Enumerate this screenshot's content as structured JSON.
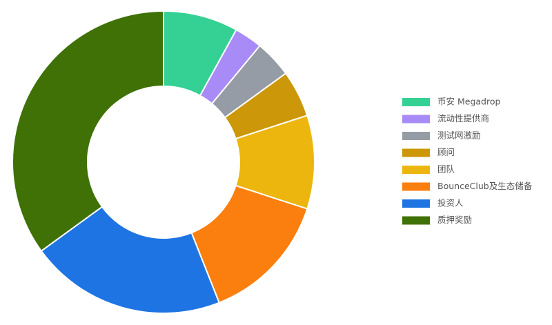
{
  "chart_data": {
    "type": "donut",
    "categories": [
      "币安 Megadrop",
      "流动性提供商",
      "测试网激励",
      "顾问",
      "团队",
      "BounceClub及生态储备",
      "投资人",
      "质押奖励"
    ],
    "values": [
      8,
      3,
      4,
      5,
      10,
      14,
      21,
      35
    ],
    "colors": [
      "#35d194",
      "#a98bf7",
      "#959ca6",
      "#cc9708",
      "#ecb60e",
      "#fb7f0e",
      "#1f74e3",
      "#3f7106"
    ],
    "legend": "right"
  }
}
